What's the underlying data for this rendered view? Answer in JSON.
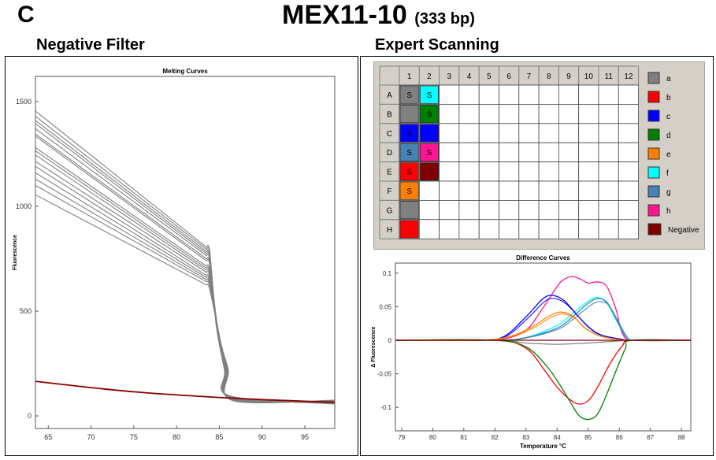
{
  "header": {
    "panel_letter": "C",
    "title": "MEX11-10",
    "title_suffix": "(333 bp)",
    "left_heading": "Negative Filter",
    "right_heading": "Expert Scanning"
  },
  "plate": {
    "columns": [
      "1",
      "2",
      "3",
      "4",
      "5",
      "6",
      "7",
      "8",
      "9",
      "10",
      "11",
      "12"
    ],
    "rows": [
      "A",
      "B",
      "C",
      "D",
      "E",
      "F",
      "G",
      "H"
    ],
    "wells": [
      {
        "row": "A",
        "col": "1",
        "group": "a",
        "label": "S"
      },
      {
        "row": "A",
        "col": "2",
        "group": "f",
        "label": "S"
      },
      {
        "row": "B",
        "col": "1",
        "group": "a",
        "label": ""
      },
      {
        "row": "B",
        "col": "2",
        "group": "d",
        "label": "S"
      },
      {
        "row": "C",
        "col": "1",
        "group": "c",
        "label": "S"
      },
      {
        "row": "C",
        "col": "2",
        "group": "c",
        "label": ""
      },
      {
        "row": "D",
        "col": "1",
        "group": "g",
        "label": "S"
      },
      {
        "row": "D",
        "col": "2",
        "group": "h",
        "label": "S"
      },
      {
        "row": "E",
        "col": "1",
        "group": "b",
        "label": "S"
      },
      {
        "row": "E",
        "col": "2",
        "group": "negative",
        "label": ""
      },
      {
        "row": "F",
        "col": "1",
        "group": "e",
        "label": "S"
      },
      {
        "row": "G",
        "col": "1",
        "group": "a",
        "label": ""
      },
      {
        "row": "H",
        "col": "1",
        "group": "b",
        "label": ""
      }
    ],
    "legend": [
      {
        "key": "a",
        "label": "a",
        "color": "#808080"
      },
      {
        "key": "b",
        "label": "b",
        "color": "#ff0000"
      },
      {
        "key": "c",
        "label": "c",
        "color": "#0000ff"
      },
      {
        "key": "d",
        "label": "d",
        "color": "#008000"
      },
      {
        "key": "e",
        "label": "e",
        "color": "#ff8000"
      },
      {
        "key": "f",
        "label": "f",
        "color": "#00ffff"
      },
      {
        "key": "g",
        "label": "g",
        "color": "#4682b4"
      },
      {
        "key": "h",
        "label": "h",
        "color": "#ff1493"
      },
      {
        "key": "negative",
        "label": "Negative",
        "color": "#800000"
      }
    ]
  },
  "chart_data": [
    {
      "type": "line",
      "title": "Melting Curves",
      "xlabel": "",
      "ylabel": "Fluorescence",
      "xlim": [
        63.5,
        98.5
      ],
      "ylim": [
        -60,
        1620
      ],
      "xticks": [
        65,
        70,
        75,
        80,
        85,
        90,
        95
      ],
      "yticks": [
        0,
        500,
        1000,
        1500
      ],
      "grid": false,
      "sample_curves": {
        "color": "#808080",
        "start_x": 63.5,
        "start_values": [
          1455,
          1430,
          1410,
          1395,
          1370,
          1345,
          1335,
          1280,
          1265,
          1245,
          1215,
          1190,
          1160,
          1130,
          1100,
          1055
        ],
        "knee_x": 83.5,
        "knee_values": [
          805,
          795,
          785,
          775,
          765,
          750,
          740,
          715,
          705,
          695,
          685,
          670,
          660,
          650,
          640,
          625
        ],
        "end_x": 98.5,
        "end_value": 65
      },
      "negative_curve": {
        "color": "#8b0000",
        "x": [
          63.5,
          70,
          75,
          80,
          85,
          90,
          95,
          98.5
        ],
        "y": [
          165,
          135,
          115,
          100,
          88,
          78,
          70,
          65
        ]
      }
    },
    {
      "type": "line",
      "title": "Difference Curves",
      "xlabel": "Temperature °C",
      "ylabel": "Δ Fluorescence",
      "xlim": [
        78.8,
        88.3
      ],
      "ylim": [
        -0.135,
        0.115
      ],
      "xticks": [
        79,
        80,
        81,
        82,
        83,
        84,
        85,
        86,
        87,
        88
      ],
      "yticks": [
        -0.1,
        -0.05,
        0,
        0.05,
        0.1
      ],
      "grid": false,
      "series": [
        {
          "key": "h",
          "color": "#ff1493",
          "x": [
            78.8,
            81.5,
            82.3,
            83.0,
            83.5,
            84.0,
            84.2,
            84.5,
            84.8,
            85.0,
            85.3,
            85.6,
            85.9,
            86.1,
            86.5,
            88.3
          ],
          "y": [
            0,
            0,
            0.002,
            0.015,
            0.045,
            0.08,
            0.09,
            0.095,
            0.09,
            0.085,
            0.087,
            0.08,
            0.045,
            0.01,
            0,
            0
          ]
        },
        {
          "key": "f",
          "color": "#00ffff",
          "x": [
            78.8,
            82.0,
            83.0,
            84.0,
            84.5,
            85.0,
            85.3,
            85.6,
            85.9,
            86.2,
            86.5,
            88.3
          ],
          "y": [
            0,
            0,
            0.004,
            0.022,
            0.04,
            0.058,
            0.064,
            0.055,
            0.03,
            0.006,
            0,
            0
          ]
        },
        {
          "key": "g",
          "color": "#4682b4",
          "x": [
            78.8,
            82.0,
            83.0,
            84.0,
            84.5,
            85.0,
            85.3,
            85.6,
            85.9,
            86.2,
            86.5,
            88.3
          ],
          "y": [
            0,
            0,
            0.004,
            0.018,
            0.035,
            0.055,
            0.062,
            0.057,
            0.032,
            0.006,
            0,
            0
          ]
        },
        {
          "key": "c",
          "color": "#0000ff",
          "x": [
            78.8,
            81.5,
            82.3,
            83.0,
            83.5,
            83.8,
            84.2,
            84.6,
            85.0,
            85.4,
            86.0,
            86.4,
            88.3
          ],
          "y": [
            0,
            0,
            0.006,
            0.035,
            0.06,
            0.067,
            0.06,
            0.04,
            0.02,
            0.008,
            0.002,
            0,
            0
          ]
        },
        {
          "key": "e",
          "color": "#ff8000",
          "x": [
            78.8,
            81.5,
            82.5,
            83.2,
            83.7,
            84.1,
            84.5,
            84.9,
            85.4,
            86.0,
            86.4,
            88.3
          ],
          "y": [
            0,
            0,
            0.006,
            0.02,
            0.035,
            0.042,
            0.036,
            0.018,
            0.006,
            0.001,
            0,
            0
          ]
        },
        {
          "key": "a",
          "color": "#808080",
          "x": [
            78.8,
            82.0,
            83.0,
            84.0,
            85.0,
            86.0,
            86.5,
            88.3
          ],
          "y": [
            0,
            0,
            -0.004,
            -0.006,
            -0.004,
            -0.001,
            0,
            0
          ]
        },
        {
          "key": "b",
          "color": "#ff0000",
          "x": [
            78.8,
            82.0,
            83.0,
            83.6,
            84.0,
            84.4,
            84.7,
            85.0,
            85.3,
            85.7,
            86.1,
            86.4,
            88.3
          ],
          "y": [
            0,
            0,
            -0.012,
            -0.045,
            -0.07,
            -0.088,
            -0.095,
            -0.09,
            -0.07,
            -0.035,
            -0.008,
            0,
            0
          ]
        },
        {
          "key": "d",
          "color": "#008000",
          "x": [
            78.8,
            82.0,
            83.0,
            83.6,
            84.0,
            84.4,
            84.7,
            85.0,
            85.3,
            85.6,
            85.9,
            86.2,
            86.4,
            88.3
          ],
          "y": [
            0,
            0,
            -0.01,
            -0.035,
            -0.06,
            -0.09,
            -0.112,
            -0.118,
            -0.11,
            -0.08,
            -0.045,
            -0.012,
            0,
            0
          ]
        },
        {
          "key": "negative",
          "color": "#800000",
          "x": [
            78.8,
            88.3
          ],
          "y": [
            0,
            0
          ]
        }
      ]
    }
  ]
}
